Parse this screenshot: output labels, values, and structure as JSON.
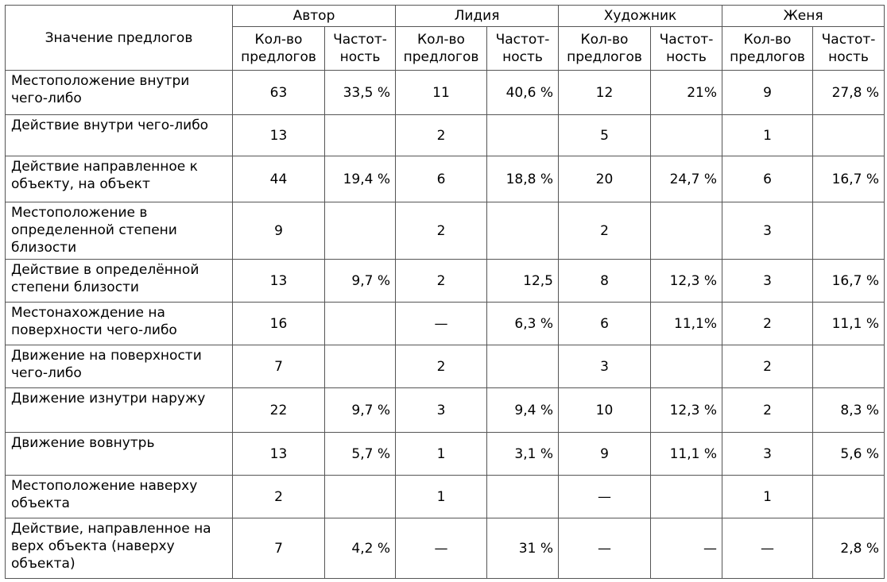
{
  "table": {
    "corner_label": "Значение предлогов",
    "groups": [
      "Автор",
      "Лидия",
      "Художник",
      "Женя"
    ],
    "sub_count": "Кол-во\nпредлогов",
    "sub_freq": "Частот-\nность",
    "rows": [
      {
        "label": "Местоположение внутри чего-либо",
        "cells": [
          "63",
          "33,5 %",
          "11",
          "40,6 %",
          "12",
          "21%",
          "9",
          "27,8 %"
        ]
      },
      {
        "label": "Действие внутри чего-либо",
        "cells": [
          "13",
          "",
          "2",
          "",
          "5",
          "",
          "1",
          ""
        ]
      },
      {
        "label": "Действие направленное к объекту, на объект",
        "cells": [
          "44",
          "19,4 %",
          "6",
          "18,8 %",
          "20",
          "24,7 %",
          "6",
          "16,7 %"
        ]
      },
      {
        "label": "Местоположение в определенной степени близости",
        "cells": [
          "9",
          "",
          "2",
          "",
          "2",
          "",
          "3",
          ""
        ]
      },
      {
        "label": "Действие в определённой степени близости",
        "cells": [
          "13",
          "9,7 %",
          "2",
          "12,5",
          "8",
          "12,3 %",
          "3",
          "16,7 %"
        ]
      },
      {
        "label": "Местонахождение на поверхности чего-либо",
        "cells": [
          "16",
          "",
          "—",
          "6,3 %",
          "6",
          "11,1%",
          "2",
          "11,1 %"
        ]
      },
      {
        "label": "Движение на поверхности чего-либо",
        "cells": [
          "7",
          "",
          "2",
          "",
          "3",
          "",
          "2",
          ""
        ]
      },
      {
        "label": "Движение изнутри наружу",
        "cells": [
          "22",
          "9,7 %",
          "3",
          "9,4 %",
          "10",
          "12,3 %",
          "2",
          "8,3 %"
        ]
      },
      {
        "label": "Движение вовнутрь",
        "cells": [
          "13",
          "5,7 %",
          "1",
          "3,1 %",
          "9",
          "11,1 %",
          "3",
          "5,6 %"
        ]
      },
      {
        "label": "Местоположение наверху объекта",
        "cells": [
          "2",
          "",
          "1",
          "",
          "—",
          "",
          "1",
          ""
        ]
      },
      {
        "label": "Действие, направленное на верх объекта (наверху объекта)",
        "cells": [
          "7",
          "4,2 %",
          "—",
          "31 %",
          "—",
          "—",
          "—",
          "2,8 %"
        ]
      }
    ]
  }
}
